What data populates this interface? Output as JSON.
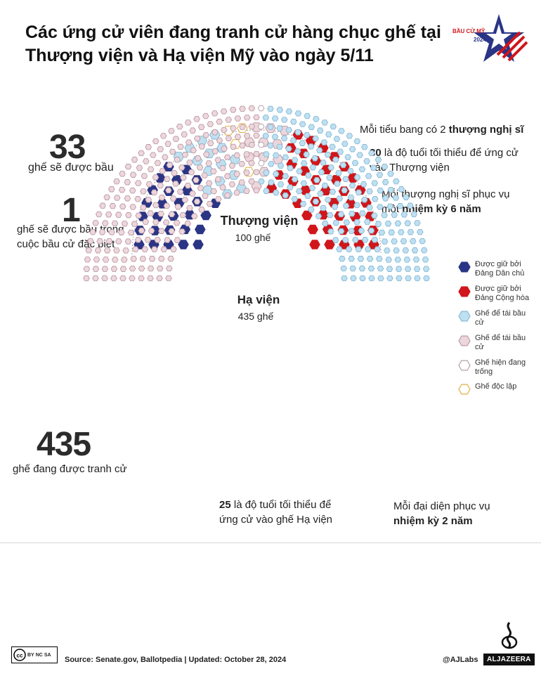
{
  "title": "Các ứng cử viên đang tranh cử hàng chục ghế tại Thượng viện và Hạ viện Mỹ vào ngày 5/11",
  "logo": {
    "label": "BẦU CỬ MỸ",
    "year": "2024"
  },
  "stats": {
    "senate_up": {
      "number": "33",
      "text": "ghế sẽ được bầu"
    },
    "special": {
      "number": "1",
      "line1": "ghế sẽ được bầu trong",
      "line2": "cuộc bầu cử đặc biệt"
    },
    "house_up": {
      "number": "435",
      "text": "ghế đang được tranh cử"
    }
  },
  "senate_facts": {
    "fact1_pre": "Mỗi tiểu bang có 2 ",
    "fact1_bold": "thượng nghị sĩ",
    "fact2_bold": "30",
    "fact2_line1": " là độ tuổi tối thiểu để ứng cử",
    "fact2_line2": "vào Thượng viện",
    "fact3_line1": "Mỗi thượng nghị sĩ phục vụ",
    "fact3_pre": "một ",
    "fact3_bold": "nhiệm kỳ 6 năm"
  },
  "house_facts": {
    "fact1_bold": "25",
    "fact1_line1": " là độ tuổi tối thiểu để",
    "fact1_line2": "ứng cử vào ghế Hạ viện",
    "fact2_line1": "Mỗi đại diện phục vụ",
    "fact2_bold": "nhiệm kỳ 2 năm"
  },
  "legend": [
    {
      "key": "dem_held",
      "label": "Được giữ bởi Đảng Dân chủ",
      "fill": "#2a3585",
      "stroke": "#2a3585"
    },
    {
      "key": "rep_held",
      "label": "Được giữ bởi Đảng Cộng hòa",
      "fill": "#d0161b",
      "stroke": "#d0161b"
    },
    {
      "key": "dem_up",
      "label": "Ghế để tái bầu cử",
      "fill": "#bfe0f1",
      "stroke": "#86bad6"
    },
    {
      "key": "rep_up",
      "label": "Ghế để tái bầu cử",
      "fill": "#ecd7dc",
      "stroke": "#bf9aa5"
    },
    {
      "key": "vacant",
      "label": "Ghế hiện đang trống",
      "fill": "#ffffff",
      "stroke": "#b3a0a8"
    },
    {
      "key": "independent",
      "label": "Ghế độc lập",
      "fill": "#ffffff",
      "stroke": "#e2ae42"
    }
  ],
  "chart_data": [
    {
      "type": "parliament",
      "title": "Thượng viện",
      "subtitle": "100 ghế",
      "total": 100,
      "groups": [
        {
          "key": "dem_held",
          "count": 28
        },
        {
          "key": "dem_up",
          "count": 15
        },
        {
          "key": "independent",
          "count": 4
        },
        {
          "key": "rep_up",
          "count": 11
        },
        {
          "key": "rep_held",
          "count": 42
        }
      ]
    },
    {
      "type": "parliament",
      "title": "Hạ viện",
      "subtitle": "435 ghế",
      "total": 435,
      "groups": [
        {
          "key": "rep_up",
          "count": 220
        },
        {
          "key": "vacant",
          "count": 4
        },
        {
          "key": "dem_up",
          "count": 211
        }
      ]
    }
  ],
  "footer": {
    "source": "Source: Senate.gov, Ballotpedia |  Updated: October 28, 2024",
    "handle": "@AJLabs",
    "brand": "ALJAZEERA",
    "license": [
      "BY",
      "NC",
      "SA"
    ]
  }
}
